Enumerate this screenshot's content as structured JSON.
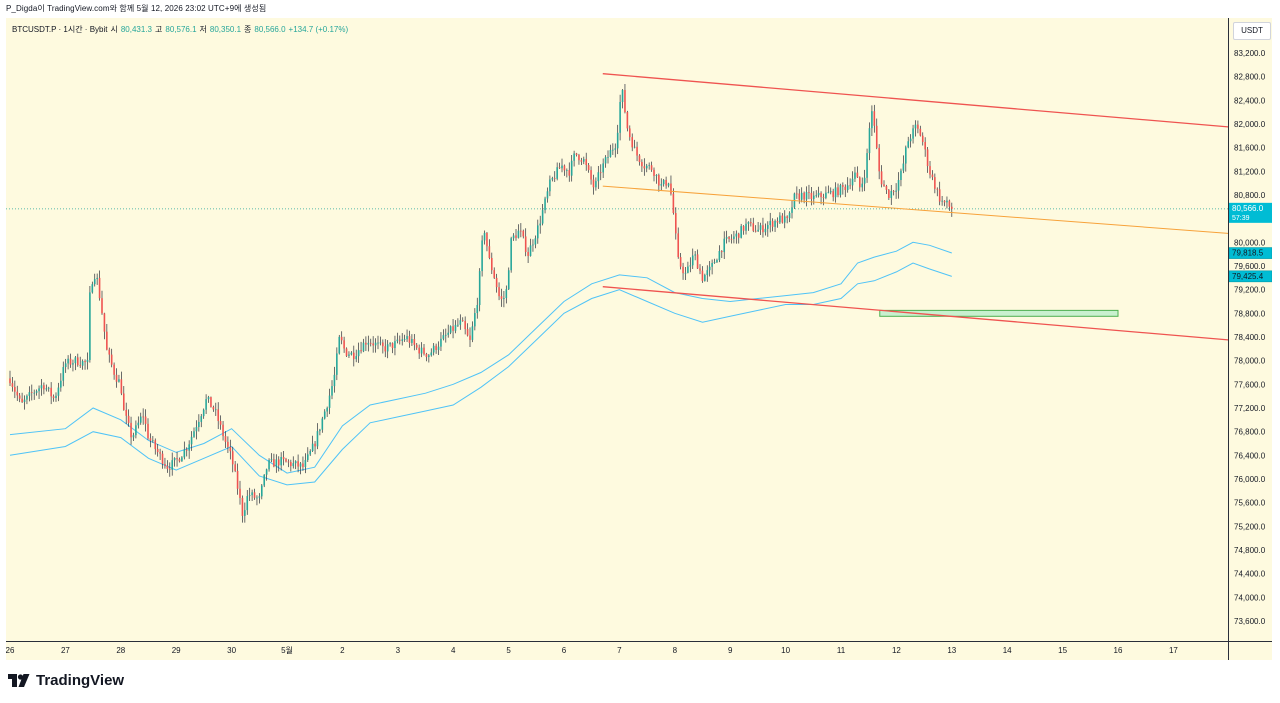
{
  "caption": "P_Digda이 TradingView.com와 함께 5월 12, 2026 23:02 UTC+9에 생성됨",
  "legend": {
    "symbol": "BTCUSDT.P · 1시간 · Bybit",
    "open_label": "시",
    "open": "80,431.3",
    "high_label": "고",
    "high": "80,576.1",
    "low_label": "저",
    "low": "80,350.1",
    "close_label": "종",
    "close": "80,566.0",
    "change": "+134.7 (+0.17%)"
  },
  "currency": "USDT",
  "brand": "TradingView",
  "colors": {
    "background": "#fefadf",
    "up": "#26a69a",
    "down": "#ef5350",
    "trendline": "#ef5350",
    "midline": "#f7a23a",
    "bands": "#4fc3f7",
    "zone_fill": "#c8f0cf",
    "zone_border": "#4caf50",
    "axis_text": "#131722"
  },
  "chart_data": {
    "type": "candlestick",
    "x_ticks": [
      "26",
      "27",
      "28",
      "29",
      "30",
      "5월",
      "2",
      "3",
      "4",
      "5",
      "6",
      "7",
      "8",
      "9",
      "10",
      "11",
      "12",
      "13",
      "14",
      "15",
      "16",
      "17"
    ],
    "x_tick_day_index": [
      0,
      1,
      2,
      3,
      4,
      5,
      6,
      7,
      8,
      9,
      10,
      11,
      12,
      13,
      14,
      15,
      16,
      17,
      18,
      19,
      20,
      21
    ],
    "y_ticks": [
      83200,
      82800,
      82400,
      82000,
      81600,
      81200,
      80800,
      80000,
      79600,
      79200,
      78800,
      78400,
      78000,
      77600,
      77200,
      76800,
      76400,
      76000,
      75600,
      75200,
      74800,
      74400,
      74000,
      73600
    ],
    "y_range": [
      73400,
      83400
    ],
    "price_labels": [
      {
        "price": 80566.0,
        "text": "80,566.0",
        "sub": "57:39",
        "role": "last"
      },
      {
        "price": 79818.5,
        "text": "79,818.5",
        "sub": "",
        "role": "band-upper"
      },
      {
        "price": 79425.4,
        "text": "79,425.4",
        "sub": "",
        "role": "band-lower"
      }
    ],
    "last_price": 80566.0,
    "closes_by_day": [
      [
        0,
        77700
      ],
      [
        0.2,
        77250
      ],
      [
        0.4,
        77450
      ],
      [
        0.6,
        77600
      ],
      [
        0.8,
        77350
      ],
      [
        1.0,
        77950
      ],
      [
        1.2,
        78000
      ],
      [
        1.4,
        77950
      ],
      [
        1.45,
        79300
      ],
      [
        1.55,
        79500
      ],
      [
        1.65,
        78900
      ],
      [
        1.75,
        78150
      ],
      [
        1.9,
        77750
      ],
      [
        2.0,
        77600
      ],
      [
        2.05,
        77150
      ],
      [
        2.2,
        76700
      ],
      [
        2.4,
        77100
      ],
      [
        2.5,
        76700
      ],
      [
        2.7,
        76400
      ],
      [
        2.85,
        76200
      ],
      [
        3.0,
        76300
      ],
      [
        3.2,
        76550
      ],
      [
        3.4,
        77000
      ],
      [
        3.55,
        77350
      ],
      [
        3.7,
        77150
      ],
      [
        3.9,
        76600
      ],
      [
        4.0,
        76350
      ],
      [
        4.1,
        75900
      ],
      [
        4.2,
        75400
      ],
      [
        4.3,
        75750
      ],
      [
        4.5,
        75650
      ],
      [
        4.65,
        76250
      ],
      [
        4.9,
        76300
      ],
      [
        5.1,
        76250
      ],
      [
        5.3,
        76200
      ],
      [
        5.5,
        76600
      ],
      [
        5.6,
        76900
      ],
      [
        5.75,
        77350
      ],
      [
        5.85,
        77700
      ],
      [
        5.95,
        78400
      ],
      [
        6.05,
        78150
      ],
      [
        6.2,
        78100
      ],
      [
        6.45,
        78350
      ],
      [
        6.75,
        78200
      ],
      [
        7.0,
        78300
      ],
      [
        7.15,
        78400
      ],
      [
        7.35,
        78200
      ],
      [
        7.55,
        78100
      ],
      [
        7.75,
        78300
      ],
      [
        7.95,
        78500
      ],
      [
        8.15,
        78650
      ],
      [
        8.3,
        78300
      ],
      [
        8.45,
        79100
      ],
      [
        8.55,
        80300
      ],
      [
        8.65,
        79700
      ],
      [
        8.75,
        79400
      ],
      [
        8.85,
        79000
      ],
      [
        8.95,
        79100
      ],
      [
        9.05,
        80050
      ],
      [
        9.2,
        80200
      ],
      [
        9.35,
        79800
      ],
      [
        9.55,
        80300
      ],
      [
        9.75,
        81000
      ],
      [
        9.95,
        81300
      ],
      [
        10.1,
        81200
      ],
      [
        10.2,
        81500
      ],
      [
        10.35,
        81400
      ],
      [
        10.55,
        80900
      ],
      [
        10.65,
        81200
      ],
      [
        10.85,
        81550
      ],
      [
        10.95,
        81700
      ],
      [
        11.0,
        82300
      ],
      [
        11.05,
        82550
      ],
      [
        11.15,
        81900
      ],
      [
        11.3,
        81500
      ],
      [
        11.45,
        81300
      ],
      [
        11.6,
        81250
      ],
      [
        11.75,
        80950
      ],
      [
        11.9,
        81050
      ],
      [
        12.0,
        80300
      ],
      [
        12.05,
        79700
      ],
      [
        12.2,
        79450
      ],
      [
        12.35,
        79800
      ],
      [
        12.5,
        79400
      ],
      [
        12.65,
        79550
      ],
      [
        12.75,
        79750
      ],
      [
        12.9,
        80000
      ],
      [
        13.1,
        80100
      ],
      [
        13.3,
        80300
      ],
      [
        13.5,
        80200
      ],
      [
        13.7,
        80300
      ],
      [
        13.9,
        80400
      ],
      [
        14.05,
        80350
      ],
      [
        14.15,
        80750
      ],
      [
        14.3,
        80800
      ],
      [
        14.5,
        80750
      ],
      [
        14.7,
        80800
      ],
      [
        14.9,
        80850
      ],
      [
        15.1,
        80950
      ],
      [
        15.25,
        81150
      ],
      [
        15.35,
        80900
      ],
      [
        15.45,
        81250
      ],
      [
        15.55,
        82300
      ],
      [
        15.6,
        81950
      ],
      [
        15.7,
        81100
      ],
      [
        15.85,
        80800
      ],
      [
        16.0,
        80950
      ],
      [
        16.1,
        81200
      ],
      [
        16.2,
        81700
      ],
      [
        16.35,
        81950
      ],
      [
        16.45,
        81800
      ],
      [
        16.6,
        81200
      ],
      [
        16.7,
        80950
      ],
      [
        16.8,
        80700
      ],
      [
        16.9,
        80650
      ],
      [
        17.0,
        80566
      ]
    ],
    "trendlines": [
      {
        "name": "resistance",
        "style": "red",
        "points": [
          [
            10.7,
            82850
          ],
          [
            22.0,
            81950
          ]
        ]
      },
      {
        "name": "support",
        "style": "red",
        "points": [
          [
            10.7,
            79250
          ],
          [
            22.0,
            78350
          ]
        ]
      },
      {
        "name": "mid",
        "style": "orange",
        "points": [
          [
            10.7,
            80950
          ],
          [
            22.0,
            80150
          ]
        ]
      }
    ],
    "bands": {
      "upper": [
        [
          0,
          76750
        ],
        [
          1,
          76850
        ],
        [
          1.5,
          77200
        ],
        [
          2.0,
          77000
        ],
        [
          2.5,
          76650
        ],
        [
          3.0,
          76450
        ],
        [
          3.5,
          76600
        ],
        [
          4.0,
          76850
        ],
        [
          4.5,
          76400
        ],
        [
          5.0,
          76100
        ],
        [
          5.5,
          76200
        ],
        [
          6.0,
          76900
        ],
        [
          6.5,
          77250
        ],
        [
          7.0,
          77350
        ],
        [
          7.5,
          77450
        ],
        [
          8.0,
          77600
        ],
        [
          8.5,
          77800
        ],
        [
          9.0,
          78100
        ],
        [
          9.5,
          78550
        ],
        [
          10.0,
          79000
        ],
        [
          10.5,
          79300
        ],
        [
          11.0,
          79450
        ],
        [
          11.5,
          79400
        ],
        [
          12.0,
          79150
        ],
        [
          12.5,
          79050
        ],
        [
          13.0,
          79000
        ],
        [
          13.5,
          79050
        ],
        [
          14.0,
          79100
        ],
        [
          14.5,
          79150
        ],
        [
          15.0,
          79300
        ],
        [
          15.3,
          79650
        ],
        [
          15.6,
          79750
        ],
        [
          16.0,
          79850
        ],
        [
          16.3,
          80000
        ],
        [
          16.6,
          79950
        ],
        [
          17.0,
          79820
        ]
      ],
      "lower": [
        [
          0,
          76400
        ],
        [
          1,
          76550
        ],
        [
          1.5,
          76800
        ],
        [
          2.0,
          76700
        ],
        [
          2.5,
          76350
        ],
        [
          3.0,
          76150
        ],
        [
          3.5,
          76350
        ],
        [
          4.0,
          76550
        ],
        [
          4.5,
          76050
        ],
        [
          5.0,
          75900
        ],
        [
          5.5,
          75950
        ],
        [
          6.0,
          76500
        ],
        [
          6.5,
          76950
        ],
        [
          7.0,
          77050
        ],
        [
          7.5,
          77150
        ],
        [
          8.0,
          77250
        ],
        [
          8.5,
          77550
        ],
        [
          9.0,
          77900
        ],
        [
          9.5,
          78350
        ],
        [
          10.0,
          78800
        ],
        [
          10.5,
          79050
        ],
        [
          11.0,
          79200
        ],
        [
          11.5,
          79000
        ],
        [
          12.0,
          78800
        ],
        [
          12.5,
          78650
        ],
        [
          13.0,
          78750
        ],
        [
          13.5,
          78850
        ],
        [
          14.0,
          78950
        ],
        [
          14.5,
          78950
        ],
        [
          15.0,
          79050
        ],
        [
          15.3,
          79300
        ],
        [
          15.6,
          79350
        ],
        [
          16.0,
          79500
        ],
        [
          16.3,
          79650
        ],
        [
          16.6,
          79550
        ],
        [
          17.0,
          79425
        ]
      ]
    },
    "zone": {
      "day_start": 15.7,
      "day_end": 20.0,
      "price_low": 78750,
      "price_high": 78850
    }
  }
}
